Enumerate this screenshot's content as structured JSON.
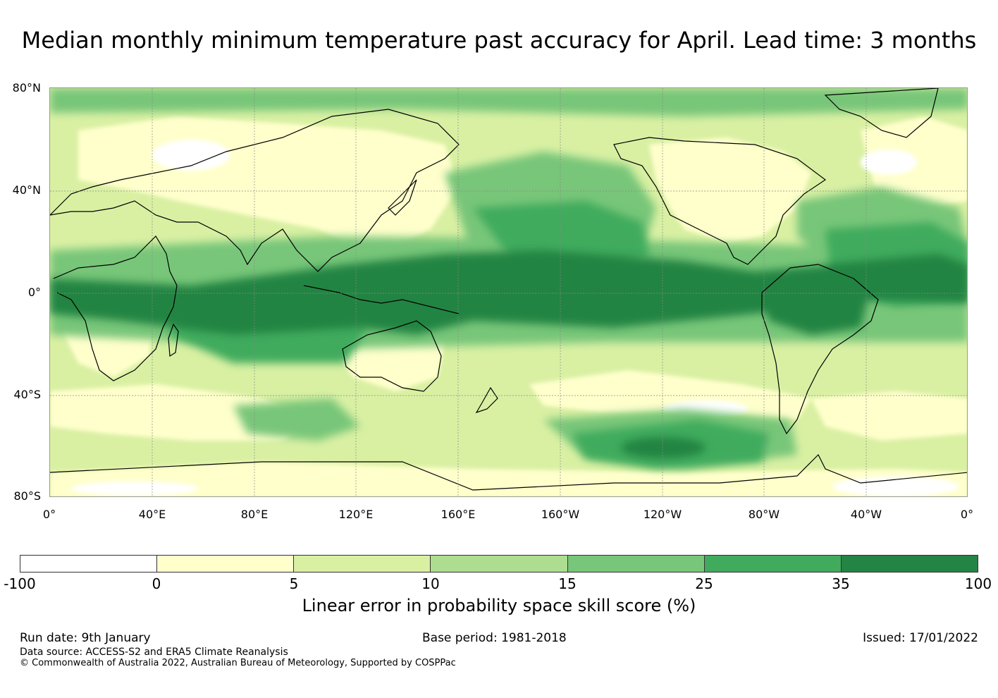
{
  "title": "Median monthly minimum temperature past accuracy for April. Lead time: 3 months",
  "map": {
    "lat_labels": [
      "80°N",
      "40°N",
      "0°",
      "40°S",
      "80°S"
    ],
    "lon_labels": [
      "0°",
      "40°E",
      "80°E",
      "120°E",
      "160°E",
      "160°W",
      "120°W",
      "80°W",
      "40°W",
      "0°"
    ],
    "palette": {
      "below_0": "#ffffff",
      "0_5": "#ffffcc",
      "5_10": "#d9f0a3",
      "10_15": "#addd8e",
      "15_25": "#78c679",
      "25_35": "#41ab5d",
      "35_100": "#238443",
      "coast": "#000000",
      "grid": "#888888"
    }
  },
  "colorbar": {
    "colors": [
      "#ffffff",
      "#ffffcc",
      "#d9f0a3",
      "#addd8e",
      "#78c679",
      "#41ab5d",
      "#238443"
    ],
    "ticks": [
      "-100",
      "0",
      "5",
      "10",
      "15",
      "25",
      "35",
      "100"
    ],
    "label": "Linear error in probability space skill score (%)"
  },
  "footer": {
    "run_date": "Run date: 9th January",
    "base_period": "Base period: 1981-2018",
    "issued": "Issued: 17/01/2022",
    "data_source": "Data source: ACCESS-S2 and ERA5 Climate Reanalysis",
    "copyright": "© Commonwealth of Australia 2022, Australian Bureau of Meteorology, Supported by COSPPac"
  }
}
